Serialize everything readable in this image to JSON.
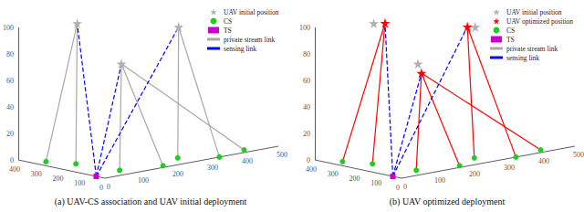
{
  "chart_data": [
    {
      "type": "scatter3d",
      "title": "(a) UAV-CS association and UAV initial deployment",
      "xlim": [
        0,
        400
      ],
      "ylim": [
        0,
        500
      ],
      "zlim": [
        0,
        100
      ],
      "xticks": [
        0,
        100,
        200,
        300,
        400
      ],
      "yticks": [
        0,
        100,
        200,
        300,
        400,
        500
      ],
      "zticks": [
        0,
        20,
        40,
        60,
        80,
        100
      ],
      "grid": false,
      "legend": "upper right",
      "series": [
        {
          "name": "UAV initial position",
          "type": "scatter",
          "marker": "star",
          "color": "#b0b0b0",
          "values": [
            [
              320,
              120,
              100
            ],
            [
              140,
              135,
              75
            ],
            [
              60,
              250,
              100
            ]
          ]
        },
        {
          "name": "CS",
          "type": "scatter",
          "marker": "circle",
          "color": "#22cc22",
          "values": [
            [
              320,
              30,
              0
            ],
            [
              230,
              60,
              0
            ],
            [
              60,
              80,
              0
            ],
            [
              20,
              180,
              0
            ],
            [
              80,
              260,
              0
            ],
            [
              0,
              330,
              0
            ],
            [
              30,
              420,
              0
            ]
          ]
        },
        {
          "name": "TS",
          "type": "scatter",
          "marker": "square",
          "color": "#cc00cc",
          "values": [
            [
              40,
              0,
              0
            ]
          ]
        },
        {
          "name": "private stream link",
          "type": "line",
          "line_style": "solid",
          "color": "#a8a8a8",
          "values": [
            [
              [
                320,
                120,
                100
              ],
              [
                320,
                30,
                0
              ]
            ],
            [
              [
                320,
                120,
                100
              ],
              [
                230,
                60,
                0
              ]
            ],
            [
              [
                140,
                135,
                75
              ],
              [
                60,
                80,
                0
              ]
            ],
            [
              [
                140,
                135,
                75
              ],
              [
                20,
                180,
                0
              ]
            ],
            [
              [
                140,
                135,
                75
              ],
              [
                30,
                420,
                0
              ]
            ],
            [
              [
                60,
                250,
                100
              ],
              [
                80,
                260,
                0
              ]
            ],
            [
              [
                60,
                250,
                100
              ],
              [
                0,
                330,
                0
              ]
            ]
          ]
        },
        {
          "name": "sensing link",
          "type": "line",
          "line_style": "dashed",
          "color": "#0000ff",
          "values": [
            [
              [
                40,
                0,
                0
              ],
              [
                320,
                120,
                100
              ]
            ],
            [
              [
                40,
                0,
                0
              ],
              [
                140,
                135,
                75
              ]
            ],
            [
              [
                40,
                0,
                0
              ],
              [
                60,
                250,
                100
              ]
            ]
          ]
        }
      ]
    },
    {
      "type": "scatter3d",
      "title": "(b) UAV optimized deployment",
      "xlim": [
        0,
        400
      ],
      "ylim": [
        0,
        500
      ],
      "zlim": [
        0,
        100
      ],
      "xticks": [
        0,
        100,
        200,
        300,
        400
      ],
      "yticks": [
        0,
        100,
        200,
        300,
        400,
        500
      ],
      "zticks": [
        0,
        20,
        40,
        60,
        80,
        100
      ],
      "grid": false,
      "legend": "upper right",
      "series": [
        {
          "name": "UAV initial position",
          "type": "scatter",
          "marker": "star",
          "color": "#b0b0b0",
          "values": [
            [
              320,
              120,
              100
            ],
            [
              140,
              135,
              75
            ],
            [
              60,
              250,
              100
            ]
          ]
        },
        {
          "name": "UAV optimized position",
          "type": "scatter",
          "marker": "star",
          "color": "#ff0000",
          "values": [
            [
              300,
              140,
              100
            ],
            [
              100,
              120,
              70
            ],
            [
              80,
              240,
              100
            ]
          ]
        },
        {
          "name": "CS",
          "type": "scatter",
          "marker": "circle",
          "color": "#22cc22",
          "values": [
            [
              320,
              30,
              0
            ],
            [
              230,
              60,
              0
            ],
            [
              60,
              80,
              0
            ],
            [
              20,
              180,
              0
            ],
            [
              80,
              260,
              0
            ],
            [
              0,
              330,
              0
            ],
            [
              30,
              420,
              0
            ]
          ]
        },
        {
          "name": "TS",
          "type": "scatter",
          "marker": "square",
          "color": "#cc00cc",
          "values": [
            [
              40,
              0,
              0
            ]
          ]
        },
        {
          "name": "private stream link",
          "type": "line",
          "line_style": "solid",
          "color": "#ff0000",
          "values": [
            [
              [
                300,
                140,
                100
              ],
              [
                320,
                30,
                0
              ]
            ],
            [
              [
                300,
                140,
                100
              ],
              [
                230,
                60,
                0
              ]
            ],
            [
              [
                100,
                120,
                70
              ],
              [
                60,
                80,
                0
              ]
            ],
            [
              [
                100,
                120,
                70
              ],
              [
                20,
                180,
                0
              ]
            ],
            [
              [
                100,
                120,
                70
              ],
              [
                30,
                420,
                0
              ]
            ],
            [
              [
                80,
                240,
                100
              ],
              [
                80,
                260,
                0
              ]
            ],
            [
              [
                80,
                240,
                100
              ],
              [
                0,
                330,
                0
              ]
            ]
          ]
        },
        {
          "name": "sensing link",
          "type": "line",
          "line_style": "dashed",
          "color": "#0000ff",
          "values": [
            [
              [
                40,
                0,
                0
              ],
              [
                300,
                140,
                100
              ]
            ],
            [
              [
                40,
                0,
                0
              ],
              [
                100,
                120,
                70
              ]
            ],
            [
              [
                40,
                0,
                0
              ],
              [
                80,
                240,
                100
              ]
            ]
          ]
        }
      ]
    }
  ]
}
